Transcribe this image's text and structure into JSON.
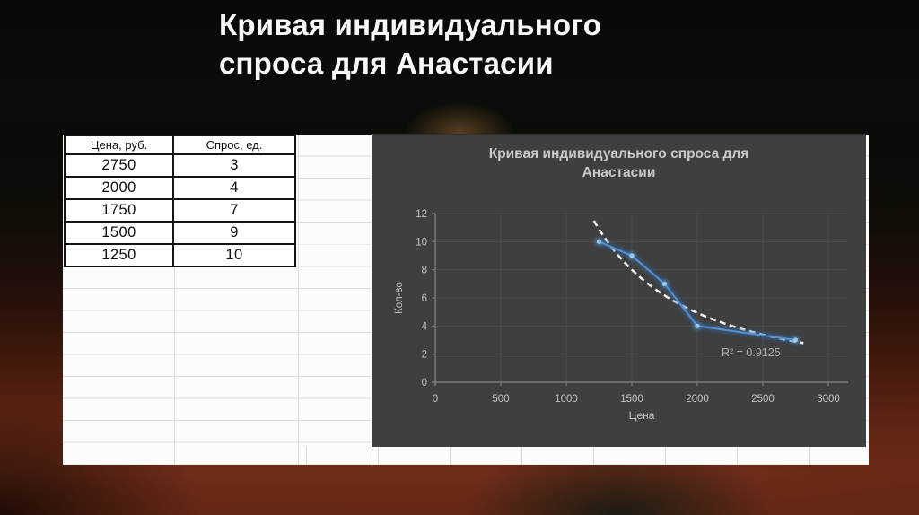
{
  "slide": {
    "title_line1": "Кривая индивидуального",
    "title_line2": "спроса для Анастасии"
  },
  "table": {
    "headers": [
      "Цена, руб.",
      "Спрос, ед."
    ],
    "rows": [
      [
        "2750",
        "3"
      ],
      [
        "2000",
        "4"
      ],
      [
        "1750",
        "7"
      ],
      [
        "1500",
        "9"
      ],
      [
        "1250",
        "10"
      ]
    ]
  },
  "chart_data": {
    "type": "line",
    "title_line1": "Кривая индивидуального спроса для",
    "title_line2": "Анастасии",
    "xlabel": "Цена",
    "ylabel": "Кол-во",
    "x": [
      1250,
      1500,
      1750,
      2000,
      2750
    ],
    "y": [
      10,
      9,
      7,
      4,
      3
    ],
    "xlim": [
      0,
      3000
    ],
    "ylim": [
      0,
      12
    ],
    "x_ticks": [
      0,
      500,
      1000,
      1500,
      2000,
      2500,
      3000
    ],
    "y_ticks": [
      0,
      2,
      4,
      6,
      8,
      10,
      12
    ],
    "grid": true,
    "legend": "none",
    "trendline": {
      "type": "power",
      "a": 1770000,
      "b": -1.6828,
      "label": "R² = 0.9125",
      "x_start": 1210,
      "x_end": 2830
    },
    "colors": {
      "chart_bg": "#3f3f3f",
      "grid": "#4e4e4e",
      "axis": "#7d7d7d",
      "tick_text": "#c4c4c4",
      "title_text": "#c9c9c9",
      "line": "#5490cd",
      "line_glow": "#2e6cb0",
      "marker": "#9cc7ee",
      "marker_halo": "#5b9bd5",
      "trend": "#ececec",
      "r2_text": "#a8b1b8"
    }
  },
  "page_colors": {
    "backdrop_top": "#0a0d09",
    "backdrop_maroon": "#6f2c1a",
    "sheet_bg": "#fcfcfc",
    "sheet_grid": "#dcdcdc",
    "title_text": "#f8f8f8"
  }
}
